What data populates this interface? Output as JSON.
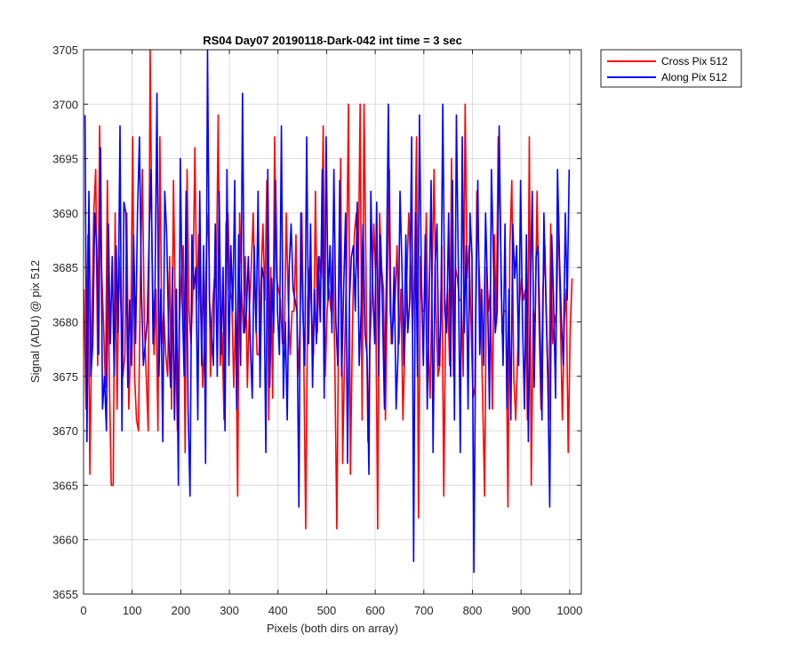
{
  "chart_data": {
    "type": "line",
    "title": "RS04 Day07 20190118-Dark-042 int time = 3 sec",
    "xlabel": "Pixels (both dirs on array)",
    "ylabel": "Signal (ADU) @ pix 512",
    "xlim": [
      0,
      1024
    ],
    "ylim": [
      3655,
      3705
    ],
    "xticks": [
      0,
      100,
      200,
      300,
      400,
      500,
      600,
      700,
      800,
      900,
      1000
    ],
    "yticks": [
      3655,
      3660,
      3665,
      3670,
      3675,
      3680,
      3685,
      3690,
      3695,
      3700,
      3705
    ],
    "grid": true,
    "legend_position": "outside-top-right",
    "series": [
      {
        "name": "Cross Pix 512",
        "color": "#ff0000",
        "x_start": 1,
        "x_step": 4,
        "values": [
          3683,
          3672,
          3688,
          3666,
          3680,
          3690,
          3694,
          3676,
          3698,
          3685,
          3680,
          3674,
          3693,
          3675,
          3665,
          3665,
          3690,
          3672,
          3686,
          3681,
          3675,
          3677,
          3690,
          3672,
          3678,
          3697,
          3675,
          3671,
          3670,
          3684,
          3694,
          3680,
          3675,
          3670,
          3705,
          3686,
          3677,
          3683,
          3670,
          3697,
          3678,
          3681,
          3677,
          3675,
          3686,
          3672,
          3693,
          3680,
          3670,
          3680,
          3684,
          3687,
          3668,
          3694,
          3681,
          3678,
          3683,
          3696,
          3682,
          3688,
          3681,
          3674,
          3679,
          3687,
          3690,
          3675,
          3681,
          3684,
          3683,
          3699,
          3676,
          3679,
          3671,
          3689,
          3690,
          3683,
          3682,
          3674,
          3681,
          3664,
          3690,
          3683,
          3679,
          3686,
          3674,
          3681,
          3685,
          3690,
          3682,
          3677,
          3677,
          3684,
          3689,
          3682,
          3693,
          3671,
          3685,
          3673,
          3697,
          3684,
          3683,
          3682,
          3678,
          3678,
          3690,
          3682,
          3677,
          3681,
          3681,
          3688,
          3675,
          3679,
          3690,
          3677,
          3661,
          3682,
          3685,
          3681,
          3677,
          3692,
          3679,
          3686,
          3684,
          3698,
          3675,
          3681,
          3683,
          3681,
          3687,
          3676,
          3661,
          3681,
          3695,
          3667,
          3677,
          3685,
          3700,
          3666,
          3679,
          3688,
          3690,
          3684,
          3700,
          3671,
          3700,
          3685,
          3669,
          3678,
          3682,
          3689,
          3684,
          3661,
          3690,
          3685,
          3683,
          3671,
          3684,
          3694,
          3678,
          3680,
          3682,
          3687,
          3678,
          3683,
          3671,
          3678,
          3684,
          3690,
          3685,
          3679,
          3685,
          3697,
          3662,
          3686,
          3681,
          3681,
          3690,
          3678,
          3673,
          3684,
          3694,
          3681,
          3675,
          3676,
          3687,
          3664,
          3681,
          3683,
          3676,
          3695,
          3675,
          3685,
          3684,
          3682,
          3682,
          3675,
          3700,
          3684,
          3687,
          3680,
          3673,
          3674,
          3692,
          3686,
          3681,
          3673,
          3664,
          3685,
          3681,
          3683,
          3672,
          3688,
          3680,
          3697,
          3690,
          3679,
          3681,
          3681,
          3663,
          3687,
          3693,
          3675,
          3671,
          3677,
          3682,
          3684,
          3682,
          3683,
          3671,
          3697,
          3665,
          3681,
          3680,
          3692,
          3680,
          3672,
          3683,
          3687,
          3679,
          3671,
          3689,
          3678,
          3680,
          3681,
          3690,
          3680,
          3671,
          3680,
          3683,
          3668,
          3679,
          3684
        ]
      },
      {
        "name": "Along Pix 512",
        "color": "#0000ff",
        "x_start": 3,
        "x_step": 4,
        "values": [
          3699,
          3669,
          3692,
          3675,
          3678,
          3690,
          3687,
          3677,
          3696,
          3672,
          3675,
          3670,
          3689,
          3678,
          3686,
          3675,
          3687,
          3679,
          3698,
          3670,
          3691,
          3690,
          3674,
          3682,
          3676,
          3688,
          3678,
          3690,
          3697,
          3683,
          3676,
          3678,
          3680,
          3688,
          3694,
          3678,
          3683,
          3701,
          3675,
          3683,
          3669,
          3692,
          3688,
          3679,
          3674,
          3685,
          3671,
          3683,
          3665,
          3695,
          3682,
          3675,
          3692,
          3672,
          3664,
          3688,
          3683,
          3685,
          3671,
          3692,
          3676,
          3687,
          3667,
          3705,
          3682,
          3679,
          3676,
          3689,
          3675,
          3692,
          3677,
          3685,
          3670,
          3694,
          3676,
          3687,
          3681,
          3693,
          3672,
          3688,
          3676,
          3701,
          3679,
          3681,
          3686,
          3678,
          3673,
          3687,
          3679,
          3692,
          3674,
          3685,
          3684,
          3668,
          3694,
          3674,
          3684,
          3679,
          3693,
          3681,
          3677,
          3698,
          3673,
          3680,
          3671,
          3685,
          3689,
          3683,
          3682,
          3681,
          3663,
          3690,
          3681,
          3676,
          3697,
          3678,
          3689,
          3674,
          3683,
          3678,
          3686,
          3680,
          3694,
          3673,
          3697,
          3682,
          3687,
          3679,
          3694,
          3680,
          3676,
          3693,
          3675,
          3683,
          3690,
          3667,
          3682,
          3686,
          3687,
          3681,
          3691,
          3676,
          3681,
          3689,
          3679,
          3677,
          3666,
          3692,
          3683,
          3678,
          3691,
          3675,
          3688,
          3681,
          3672,
          3684,
          3700,
          3681,
          3678,
          3685,
          3672,
          3677,
          3692,
          3685,
          3676,
          3688,
          3679,
          3682,
          3697,
          3658,
          3690,
          3675,
          3699,
          3684,
          3676,
          3688,
          3672,
          3682,
          3693,
          3668,
          3685,
          3689,
          3676,
          3680,
          3700,
          3681,
          3679,
          3690,
          3675,
          3693,
          3671,
          3699,
          3685,
          3668,
          3697,
          3679,
          3687,
          3672,
          3690,
          3686,
          3657,
          3681,
          3693,
          3677,
          3683,
          3676,
          3690,
          3683,
          3672,
          3694,
          3686,
          3679,
          3681,
          3698,
          3684,
          3676,
          3689,
          3672,
          3683,
          3671,
          3689,
          3684,
          3687,
          3676,
          3693,
          3680,
          3672,
          3688,
          3669,
          3682,
          3692,
          3674,
          3686,
          3687,
          3679,
          3671,
          3690,
          3682,
          3675,
          3663,
          3688,
          3682,
          3673,
          3694,
          3686,
          3680,
          3676,
          3690,
          3682,
          3694
        ]
      }
    ]
  }
}
